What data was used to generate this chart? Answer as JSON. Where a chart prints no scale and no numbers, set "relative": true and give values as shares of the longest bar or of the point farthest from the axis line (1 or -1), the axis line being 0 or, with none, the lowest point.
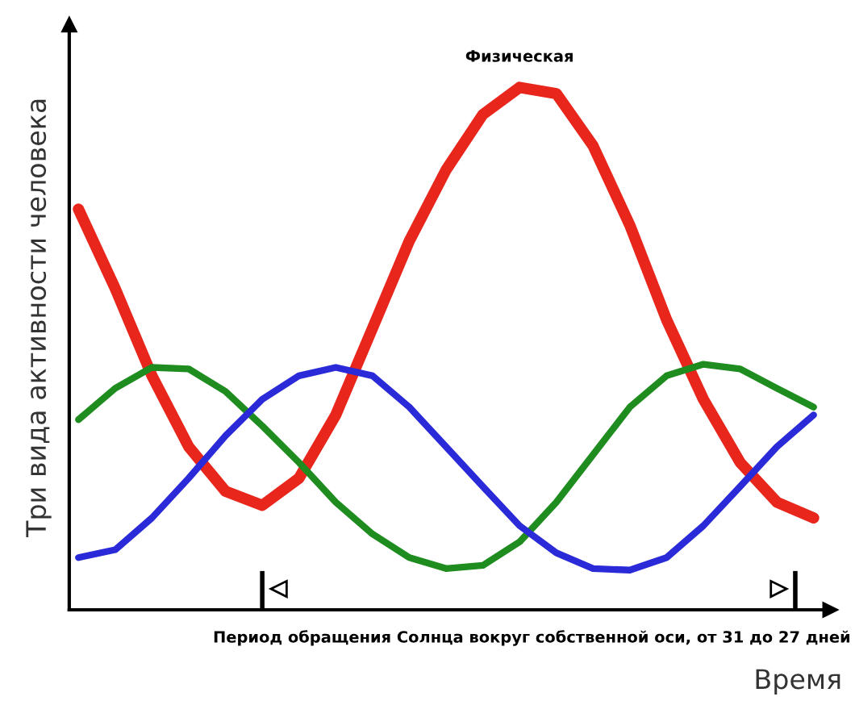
{
  "chart_data": {
    "type": "line",
    "relative": true,
    "ylabel": "Три вида активности человека",
    "xlabel": "Время",
    "annotations": [
      "Период обращения Солнца вокруг собственной оси, от 31 до 27 дней"
    ],
    "categories": [
      null,
      null,
      null,
      null,
      null,
      null,
      null,
      null,
      null,
      null,
      null,
      null,
      null,
      null,
      null,
      null,
      null,
      null,
      null,
      null,
      null
    ],
    "series": [
      {
        "name": "Физическая",
        "color": "#e8261c",
        "values": [
          0.767,
          0.615,
          0.448,
          0.312,
          0.227,
          0.2,
          0.252,
          0.373,
          0.539,
          0.706,
          0.842,
          0.948,
          1.0,
          0.988,
          0.888,
          0.736,
          0.555,
          0.403,
          0.282,
          0.206,
          0.176
        ]
      },
      {
        "color": "#1e8c1e",
        "values": [
          0.364,
          0.424,
          0.464,
          0.461,
          0.418,
          0.352,
          0.282,
          0.206,
          0.145,
          0.1,
          0.079,
          0.085,
          0.13,
          0.206,
          0.297,
          0.388,
          0.448,
          0.47,
          0.461,
          0.424,
          0.388
        ]
      },
      {
        "color": "#2a2ad8",
        "values": [
          0.1,
          0.115,
          0.176,
          0.252,
          0.333,
          0.403,
          0.448,
          0.464,
          0.448,
          0.388,
          0.312,
          0.236,
          0.161,
          0.109,
          0.079,
          0.076,
          0.1,
          0.161,
          0.236,
          0.312,
          0.373
        ]
      }
    ],
    "legend": false
  }
}
